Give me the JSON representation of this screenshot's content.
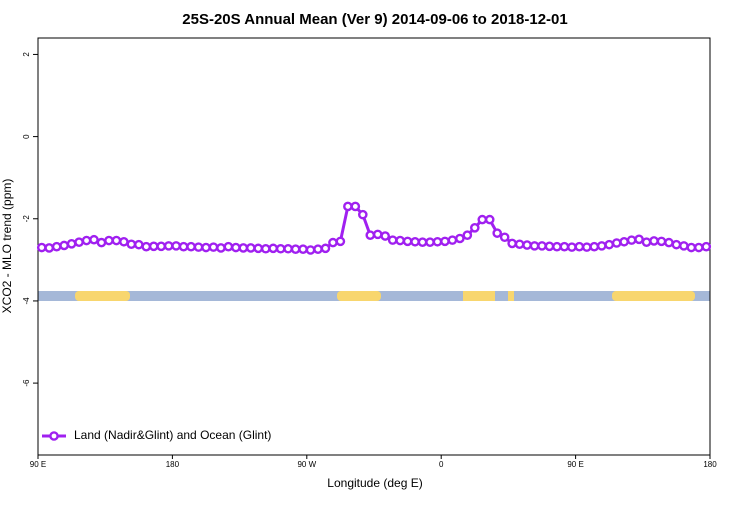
{
  "chart_data": {
    "type": "line",
    "title": "25S-20S Annual Mean (Ver 9)   2014-09-06 to 2018-12-01",
    "x_label": "Longitude (deg E)",
    "y_label": "XCO2 - MLO trend (ppm)",
    "xlim": [
      90,
      540
    ],
    "ylim": [
      -7.75,
      2.4
    ],
    "xticks": [
      {
        "value": 90,
        "label": "90 E"
      },
      180,
      {
        "value": 270,
        "label": "90 W"
      },
      {
        "value": 360,
        "label": "0"
      },
      {
        "value": 450,
        "label": "90 E"
      },
      {
        "value": 540,
        "label": "180"
      }
    ],
    "yticks": [
      -6,
      -4,
      -2,
      0,
      2
    ],
    "legend": "bottom-left",
    "x": [
      92.5,
      97.5,
      102.5,
      107.5,
      112.5,
      117.5,
      122.5,
      127.5,
      132.5,
      137.5,
      142.5,
      147.5,
      152.5,
      157.5,
      162.5,
      167.5,
      172.5,
      177.5,
      182.5,
      187.5,
      192.5,
      197.5,
      202.5,
      207.5,
      212.5,
      217.5,
      222.5,
      227.5,
      232.5,
      237.5,
      242.5,
      247.5,
      252.5,
      257.5,
      262.5,
      267.5,
      272.5,
      277.5,
      282.5,
      287.5,
      292.5,
      297.5,
      302.5,
      307.5,
      312.5,
      317.5,
      322.5,
      327.5,
      332.5,
      337.5,
      342.5,
      347.5,
      352.5,
      357.5,
      362.5,
      367.5,
      372.5,
      377.5,
      382.5,
      387.5,
      392.5,
      397.5,
      402.5,
      407.5,
      412.5,
      417.5,
      422.5,
      427.5,
      432.5,
      437.5,
      442.5,
      447.5,
      452.5,
      457.5,
      462.5,
      467.5,
      472.5,
      477.5,
      482.5,
      487.5,
      492.5,
      497.5,
      502.5,
      507.5,
      512.5,
      517.5,
      522.5,
      527.5,
      532.5,
      537.5
    ],
    "series": [
      {
        "name": "Land (Nadir&Glint) and Ocean (Glint)",
        "color": "#a020f0",
        "values": [
          -2.7,
          -2.71,
          -2.68,
          -2.65,
          -2.61,
          -2.57,
          -2.53,
          -2.51,
          -2.58,
          -2.53,
          -2.53,
          -2.56,
          -2.62,
          -2.63,
          -2.68,
          -2.67,
          -2.67,
          -2.66,
          -2.66,
          -2.68,
          -2.68,
          -2.69,
          -2.7,
          -2.69,
          -2.71,
          -2.68,
          -2.7,
          -2.71,
          -2.71,
          -2.72,
          -2.73,
          -2.72,
          -2.73,
          -2.73,
          -2.74,
          -2.74,
          -2.76,
          -2.74,
          -2.72,
          -2.58,
          -2.55,
          -1.7,
          -1.7,
          -1.9,
          -2.4,
          -2.38,
          -2.42,
          -2.52,
          -2.53,
          -2.55,
          -2.56,
          -2.57,
          -2.57,
          -2.56,
          -2.55,
          -2.52,
          -2.48,
          -2.4,
          -2.22,
          -2.02,
          -2.02,
          -2.35,
          -2.45,
          -2.6,
          -2.62,
          -2.64,
          -2.66,
          -2.66,
          -2.67,
          -2.68,
          -2.68,
          -2.69,
          -2.68,
          -2.69,
          -2.68,
          -2.66,
          -2.63,
          -2.59,
          -2.56,
          -2.52,
          -2.5,
          -2.57,
          -2.54,
          -2.55,
          -2.58,
          -2.63,
          -2.66,
          -2.7,
          -2.7,
          -2.68
        ]
      }
    ]
  }
}
